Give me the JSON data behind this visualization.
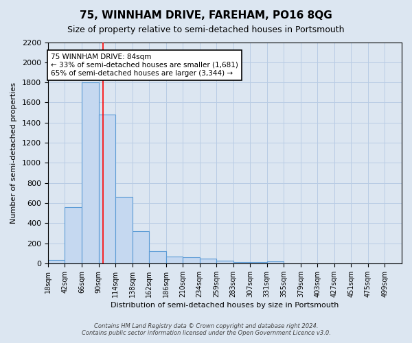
{
  "title": "75, WINNHAM DRIVE, FAREHAM, PO16 8QG",
  "subtitle": "Size of property relative to semi-detached houses in Portsmouth",
  "xlabel": "Distribution of semi-detached houses by size in Portsmouth",
  "ylabel": "Number of semi-detached properties",
  "bar_left_edges": [
    6,
    30,
    54,
    78,
    102,
    126,
    150,
    174,
    198,
    222,
    246,
    270,
    294,
    318,
    342,
    366,
    390,
    414,
    438,
    462,
    486
  ],
  "bar_heights": [
    35,
    560,
    1800,
    1480,
    660,
    320,
    120,
    65,
    60,
    50,
    25,
    15,
    10,
    20,
    0,
    0,
    0,
    0,
    0,
    0,
    0
  ],
  "bin_width": 24,
  "tick_labels": [
    "18sqm",
    "42sqm",
    "66sqm",
    "90sqm",
    "114sqm",
    "138sqm",
    "162sqm",
    "186sqm",
    "210sqm",
    "234sqm",
    "259sqm",
    "283sqm",
    "307sqm",
    "331sqm",
    "355sqm",
    "379sqm",
    "403sqm",
    "427sqm",
    "451sqm",
    "475sqm",
    "499sqm"
  ],
  "bar_color": "#c5d8f0",
  "bar_edge_color": "#5b9bd5",
  "property_line_x": 84,
  "annotation_title": "75 WINNHAM DRIVE: 84sqm",
  "annotation_line1": "← 33% of semi-detached houses are smaller (1,681)",
  "annotation_line2": "65% of semi-detached houses are larger (3,344) →",
  "annotation_box_color": "#ffffff",
  "annotation_box_edge": "#000000",
  "ylim": [
    0,
    2200
  ],
  "yticks": [
    0,
    200,
    400,
    600,
    800,
    1000,
    1200,
    1400,
    1600,
    1800,
    2000,
    2200
  ],
  "grid_color": "#b8cce4",
  "background_color": "#dce6f1",
  "footer_line1": "Contains HM Land Registry data © Crown copyright and database right 2024.",
  "footer_line2": "Contains public sector information licensed under the Open Government Licence v3.0."
}
